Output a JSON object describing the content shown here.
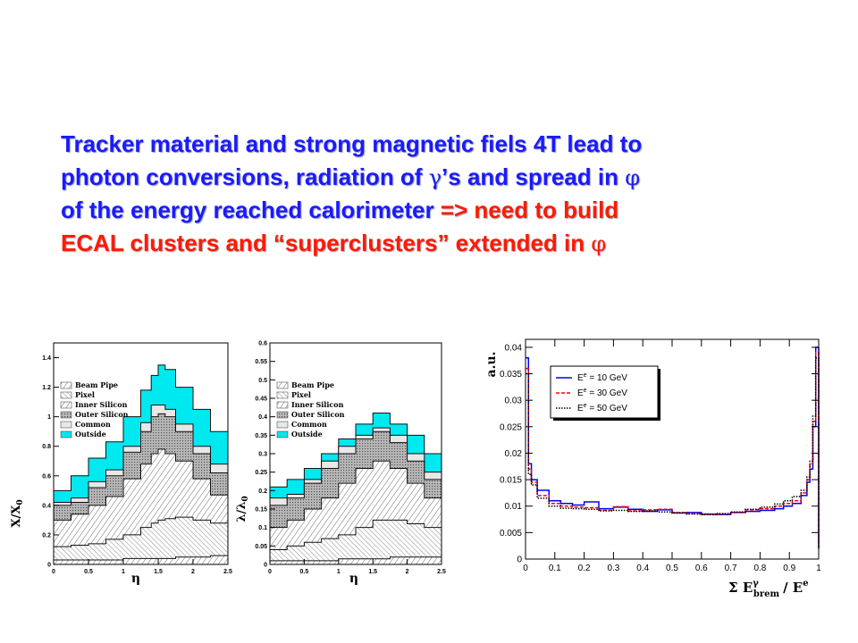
{
  "headline": {
    "s1": "Tracker material and strong magnetic fiels 4T lead to",
    "s2": "photon conversions, radiation of ",
    "g1": "γ",
    "s3": "’s and spread in ",
    "p1": "φ",
    "s4": "of the energy reached calorimeter",
    "s5": " => need to build",
    "s6": "ECAL clusters and “superclusters” extended in ",
    "p2": "φ"
  },
  "colors": {
    "text_blue": "#1a1aff",
    "text_red": "#ff1a00",
    "cyan": "#00e8f0",
    "grey": "#a0a0a0",
    "blue": "#0000ff",
    "red": "#ff0000"
  },
  "chart_data": [
    {
      "type": "area",
      "ylabel": "X/X",
      "ylabel_sub": "0",
      "xlabel": "η",
      "xlim": [
        0,
        2.5
      ],
      "ylim": [
        0,
        1.5
      ],
      "x_ticks": [
        "0",
        "0.5",
        "1",
        "1.5",
        "2",
        "2.5"
      ],
      "y_ticks": [
        "0",
        "0.2",
        "0.4",
        "0.6",
        "0.8",
        "1",
        "1.2",
        "1.4"
      ],
      "legend": [
        "Beam Pipe",
        "Pixel",
        "Inner Silicon",
        "Outer Silicon",
        "Common",
        "Outside"
      ],
      "x": [
        0,
        0.25,
        0.5,
        0.75,
        1.0,
        1.25,
        1.4,
        1.5,
        1.6,
        1.75,
        2.0,
        2.25,
        2.5
      ],
      "series": [
        {
          "name": "Beam Pipe",
          "values": [
            0.03,
            0.03,
            0.03,
            0.03,
            0.04,
            0.04,
            0.04,
            0.04,
            0.04,
            0.05,
            0.05,
            0.06,
            0.07
          ]
        },
        {
          "name": "Pixel",
          "values": [
            0.12,
            0.13,
            0.14,
            0.17,
            0.2,
            0.25,
            0.28,
            0.3,
            0.31,
            0.32,
            0.3,
            0.28,
            0.27
          ]
        },
        {
          "name": "Inner Silicon",
          "values": [
            0.3,
            0.34,
            0.4,
            0.46,
            0.58,
            0.68,
            0.75,
            0.78,
            0.75,
            0.7,
            0.58,
            0.47,
            0.38
          ]
        },
        {
          "name": "Outer Silicon",
          "values": [
            0.4,
            0.42,
            0.52,
            0.6,
            0.76,
            0.9,
            1.0,
            1.02,
            1.0,
            0.9,
            0.75,
            0.62,
            0.5
          ]
        },
        {
          "name": "Common",
          "values": [
            0.42,
            0.45,
            0.56,
            0.64,
            0.8,
            0.96,
            1.08,
            1.08,
            1.05,
            0.95,
            0.8,
            0.68,
            0.55
          ]
        },
        {
          "name": "Outside",
          "values": [
            0.5,
            0.6,
            0.72,
            0.83,
            1.0,
            1.18,
            1.28,
            1.35,
            1.32,
            1.2,
            1.05,
            0.9,
            0.78
          ]
        }
      ]
    },
    {
      "type": "area",
      "ylabel": "λ/λ",
      "ylabel_sub": "0",
      "xlabel": "η",
      "xlim": [
        0,
        2.5
      ],
      "ylim": [
        0,
        0.6
      ],
      "x_ticks": [
        "0",
        "0.5",
        "1",
        "1.5",
        "2",
        "2.5"
      ],
      "y_ticks": [
        "0",
        "0.05",
        "0.1",
        "0.15",
        "0.2",
        "0.25",
        "0.3",
        "0.35",
        "0.4",
        "0.45",
        "0.5",
        "0.55",
        "0.6"
      ],
      "legend": [
        "Beam Pipe",
        "Pixel",
        "Inner Silicon",
        "Outer Silicon",
        "Common",
        "Outside"
      ],
      "x": [
        0,
        0.25,
        0.5,
        0.75,
        1.0,
        1.25,
        1.5,
        1.75,
        2.0,
        2.25,
        2.5
      ],
      "series": [
        {
          "name": "Beam Pipe",
          "values": [
            0.01,
            0.01,
            0.01,
            0.01,
            0.015,
            0.015,
            0.015,
            0.02,
            0.02,
            0.02,
            0.02
          ]
        },
        {
          "name": "Pixel",
          "values": [
            0.04,
            0.05,
            0.06,
            0.07,
            0.08,
            0.1,
            0.12,
            0.12,
            0.11,
            0.1,
            0.09
          ]
        },
        {
          "name": "Inner Silicon",
          "values": [
            0.1,
            0.12,
            0.15,
            0.18,
            0.22,
            0.26,
            0.28,
            0.26,
            0.22,
            0.18,
            0.15
          ]
        },
        {
          "name": "Outer Silicon",
          "values": [
            0.16,
            0.18,
            0.22,
            0.26,
            0.3,
            0.34,
            0.36,
            0.33,
            0.28,
            0.23,
            0.2
          ]
        },
        {
          "name": "Common",
          "values": [
            0.18,
            0.19,
            0.23,
            0.28,
            0.32,
            0.35,
            0.37,
            0.35,
            0.3,
            0.25,
            0.22
          ]
        },
        {
          "name": "Outside",
          "values": [
            0.21,
            0.23,
            0.26,
            0.3,
            0.34,
            0.38,
            0.41,
            0.38,
            0.35,
            0.3,
            0.28
          ]
        }
      ]
    },
    {
      "type": "line",
      "ylabel": "a.u.",
      "xlabel": "Σ E",
      "xlabel_sup": "γ",
      "xlabel_sub": "brem",
      "xlabel_tail": "/ E",
      "xlabel_tail_sup": "e",
      "xlim": [
        0,
        1
      ],
      "ylim": [
        0,
        0.0415
      ],
      "x_ticks": [
        "0",
        "0.1",
        "0.2",
        "0.3",
        "0.4",
        "0.5",
        "0.6",
        "0.7",
        "0.8",
        "0.9",
        "1"
      ],
      "y_ticks": [
        "0",
        "0.005",
        "0.01",
        "0.015",
        "0.02",
        "0.025",
        "0.03",
        "0.035",
        "0.04"
      ],
      "legend": [
        {
          "label": "E",
          "sup": "e",
          "tail": " = 10 GeV",
          "color": "#0000ff",
          "dash": "solid"
        },
        {
          "label": "E",
          "sup": "e",
          "tail": " = 30 GeV",
          "color": "#ff0000",
          "dash": "dashed"
        },
        {
          "label": "E",
          "sup": "e",
          "tail": " = 50 GeV",
          "color": "#000000",
          "dash": "dotted"
        }
      ],
      "x": [
        0,
        0.01,
        0.02,
        0.04,
        0.08,
        0.12,
        0.16,
        0.2,
        0.25,
        0.3,
        0.35,
        0.4,
        0.45,
        0.5,
        0.55,
        0.6,
        0.65,
        0.7,
        0.75,
        0.8,
        0.85,
        0.88,
        0.91,
        0.94,
        0.96,
        0.97,
        0.98,
        0.99,
        1.0
      ],
      "series": [
        {
          "name": "E = 10 GeV",
          "values": [
            0.038,
            0.018,
            0.015,
            0.013,
            0.011,
            0.0105,
            0.0102,
            0.0108,
            0.0095,
            0.0098,
            0.0094,
            0.009,
            0.0093,
            0.0087,
            0.0088,
            0.0085,
            0.0084,
            0.0088,
            0.009,
            0.0092,
            0.0095,
            0.01,
            0.0105,
            0.012,
            0.0145,
            0.017,
            0.025,
            0.04,
            0.002
          ]
        },
        {
          "name": "E = 30 GeV",
          "values": [
            0.036,
            0.017,
            0.0145,
            0.012,
            0.0105,
            0.01,
            0.0098,
            0.0097,
            0.0092,
            0.0099,
            0.0091,
            0.0093,
            0.0094,
            0.0088,
            0.0086,
            0.0084,
            0.0085,
            0.0088,
            0.0093,
            0.0095,
            0.01,
            0.0105,
            0.011,
            0.0125,
            0.015,
            0.018,
            0.026,
            0.039,
            0.002
          ]
        },
        {
          "name": "E = 50 GeV",
          "values": [
            0.035,
            0.016,
            0.014,
            0.0115,
            0.01,
            0.0096,
            0.0095,
            0.0094,
            0.0091,
            0.0092,
            0.009,
            0.0091,
            0.0089,
            0.0087,
            0.0085,
            0.0084,
            0.0086,
            0.0089,
            0.0094,
            0.0098,
            0.0104,
            0.011,
            0.0118,
            0.013,
            0.0155,
            0.0185,
            0.027,
            0.038,
            0.002
          ]
        }
      ]
    }
  ]
}
